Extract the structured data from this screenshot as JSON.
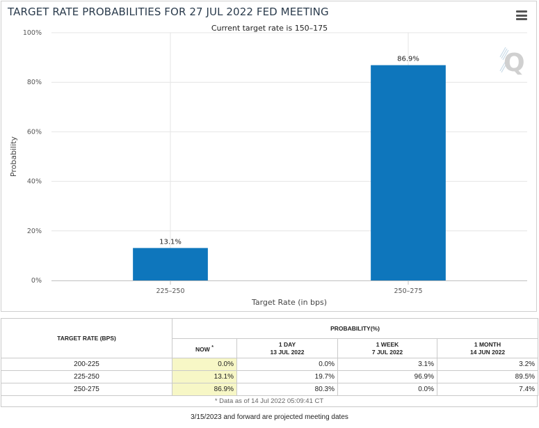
{
  "chart_data": {
    "type": "bar",
    "title": "TARGET RATE PROBABILITIES FOR 27 JUL 2022 FED MEETING",
    "subtitle": "Current target rate is 150–175",
    "categories": [
      "225–250",
      "250–275"
    ],
    "values": [
      13.1,
      86.9
    ],
    "value_labels": [
      "13.1%",
      "86.9%"
    ],
    "xlabel": "Target Rate (in bps)",
    "ylabel": "Probability",
    "ylim": [
      0,
      100
    ],
    "yticks": [
      0,
      20,
      40,
      60,
      80,
      100
    ],
    "ytick_labels": [
      "0%",
      "20%",
      "40%",
      "60%",
      "80%",
      "100%"
    ],
    "bar_color": "#0e76bc",
    "grid": true
  },
  "table": {
    "col_rate_header": "TARGET RATE (BPS)",
    "col_prob_header": "PROBABILITY(%)",
    "now_header": "NOW",
    "now_marker": "*",
    "periods": [
      {
        "label": "1 DAY",
        "date": "13 JUL 2022"
      },
      {
        "label": "1 WEEK",
        "date": "7 JUL 2022"
      },
      {
        "label": "1 MONTH",
        "date": "14 JUN 2022"
      }
    ],
    "rows": [
      {
        "rate": "200-225",
        "now": "0.0%",
        "day": "0.0%",
        "week": "3.1%",
        "month": "3.2%"
      },
      {
        "rate": "225-250",
        "now": "13.1%",
        "day": "19.7%",
        "week": "96.9%",
        "month": "89.5%"
      },
      {
        "rate": "250-275",
        "now": "86.9%",
        "day": "80.3%",
        "week": "0.0%",
        "month": "7.4%"
      }
    ],
    "footnote": "* Data as of 14 Jul 2022 05:09:41 CT"
  },
  "bottom_note": "3/15/2023 and forward are projected meeting dates",
  "icons": {
    "menu": "hamburger-menu-icon",
    "watermark": "quikstrike-q-logo"
  }
}
